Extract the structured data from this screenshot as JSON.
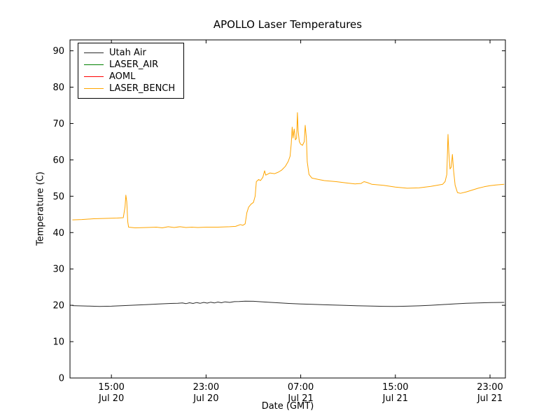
{
  "figure": {
    "background": "#ffffff"
  },
  "chart_data": {
    "type": "line",
    "title": "APOLLO Laser Temperatures",
    "xlabel": "Date (GMT)",
    "ylabel": "Temperature (C)",
    "x_unit": "hours since Jul 20 00:00 GMT",
    "xlim": [
      11.5,
      48.3
    ],
    "ylim": [
      0,
      93
    ],
    "grid": false,
    "legend_position": "upper left",
    "yticks": {
      "values": [
        0,
        10,
        20,
        30,
        40,
        50,
        60,
        70,
        80,
        90
      ],
      "labels": [
        "0",
        "10",
        "20",
        "30",
        "40",
        "50",
        "60",
        "70",
        "80",
        "90"
      ]
    },
    "xticks": {
      "values": [
        15,
        23,
        31,
        39,
        47
      ],
      "labels": [
        [
          "15:00",
          "Jul 20"
        ],
        [
          "23:00",
          "Jul 20"
        ],
        [
          "07:00",
          "Jul 21"
        ],
        [
          "15:00",
          "Jul 21"
        ],
        [
          "23:00",
          "Jul 21"
        ]
      ]
    },
    "series": [
      {
        "name": "Utah Air",
        "color": "#2b2b2b",
        "points": [
          [
            11.7,
            19.9
          ],
          [
            13,
            19.8
          ],
          [
            14,
            19.7
          ],
          [
            15,
            19.75
          ],
          [
            16,
            19.9
          ],
          [
            17,
            20.05
          ],
          [
            18,
            20.2
          ],
          [
            19,
            20.35
          ],
          [
            20,
            20.5
          ],
          [
            20.6,
            20.55
          ],
          [
            21,
            20.65
          ],
          [
            21.3,
            20.45
          ],
          [
            21.6,
            20.7
          ],
          [
            21.9,
            20.5
          ],
          [
            22.2,
            20.75
          ],
          [
            22.5,
            20.55
          ],
          [
            22.8,
            20.8
          ],
          [
            23.1,
            20.6
          ],
          [
            23.4,
            20.85
          ],
          [
            23.7,
            20.65
          ],
          [
            24,
            20.9
          ],
          [
            24.3,
            20.7
          ],
          [
            24.6,
            20.95
          ],
          [
            25,
            20.8
          ],
          [
            25.4,
            21.0
          ],
          [
            25.8,
            21.05
          ],
          [
            26.3,
            21.15
          ],
          [
            27,
            21.1
          ],
          [
            28,
            20.9
          ],
          [
            29,
            20.7
          ],
          [
            30,
            20.5
          ],
          [
            31,
            20.35
          ],
          [
            32,
            20.25
          ],
          [
            33,
            20.15
          ],
          [
            34,
            20.05
          ],
          [
            35,
            19.95
          ],
          [
            36,
            19.85
          ],
          [
            37,
            19.8
          ],
          [
            38,
            19.72
          ],
          [
            39,
            19.7
          ],
          [
            40,
            19.75
          ],
          [
            41,
            19.85
          ],
          [
            42,
            20.0
          ],
          [
            43,
            20.2
          ],
          [
            44,
            20.4
          ],
          [
            45,
            20.55
          ],
          [
            46,
            20.65
          ],
          [
            47,
            20.75
          ],
          [
            48.2,
            20.8
          ]
        ]
      },
      {
        "name": "LASER_AIR",
        "color": "#008000",
        "points": []
      },
      {
        "name": "AOML",
        "color": "#ff0000",
        "points": []
      },
      {
        "name": "LASER_BENCH",
        "color": "#ffa500",
        "points": [
          [
            11.7,
            43.5
          ],
          [
            12.5,
            43.6
          ],
          [
            13.5,
            43.8
          ],
          [
            14.5,
            43.9
          ],
          [
            15.5,
            44.0
          ],
          [
            16.0,
            44.1
          ],
          [
            16.15,
            47.0
          ],
          [
            16.22,
            50.3
          ],
          [
            16.3,
            48.5
          ],
          [
            16.38,
            43.0
          ],
          [
            16.45,
            41.5
          ],
          [
            17,
            41.3
          ],
          [
            18,
            41.4
          ],
          [
            18.8,
            41.5
          ],
          [
            19.3,
            41.3
          ],
          [
            19.8,
            41.6
          ],
          [
            20.3,
            41.4
          ],
          [
            20.8,
            41.6
          ],
          [
            21.3,
            41.4
          ],
          [
            21.8,
            41.5
          ],
          [
            22.3,
            41.4
          ],
          [
            23,
            41.5
          ],
          [
            24,
            41.5
          ],
          [
            25,
            41.6
          ],
          [
            25.5,
            41.7
          ],
          [
            25.9,
            42.2
          ],
          [
            26.1,
            42.0
          ],
          [
            26.3,
            42.4
          ],
          [
            26.45,
            45.5
          ],
          [
            26.6,
            47.0
          ],
          [
            26.8,
            47.8
          ],
          [
            27.0,
            48.3
          ],
          [
            27.15,
            50.0
          ],
          [
            27.25,
            54.0
          ],
          [
            27.45,
            54.6
          ],
          [
            27.6,
            54.3
          ],
          [
            27.8,
            55.2
          ],
          [
            27.95,
            57.0
          ],
          [
            28.05,
            55.8
          ],
          [
            28.4,
            56.4
          ],
          [
            28.8,
            56.2
          ],
          [
            29.1,
            56.6
          ],
          [
            29.4,
            57.2
          ],
          [
            29.7,
            58.2
          ],
          [
            29.95,
            59.6
          ],
          [
            30.1,
            61.0
          ],
          [
            30.2,
            64.5
          ],
          [
            30.28,
            69.0
          ],
          [
            30.35,
            66.0
          ],
          [
            30.45,
            68.5
          ],
          [
            30.55,
            65.5
          ],
          [
            30.65,
            66.0
          ],
          [
            30.72,
            73.0
          ],
          [
            30.78,
            68.0
          ],
          [
            30.88,
            65.0
          ],
          [
            31.0,
            64.3
          ],
          [
            31.15,
            64.0
          ],
          [
            31.3,
            65.0
          ],
          [
            31.38,
            69.5
          ],
          [
            31.48,
            66.0
          ],
          [
            31.55,
            59.5
          ],
          [
            31.7,
            56.0
          ],
          [
            31.95,
            55.0
          ],
          [
            32.5,
            54.6
          ],
          [
            33,
            54.3
          ],
          [
            34,
            54.0
          ],
          [
            35,
            53.6
          ],
          [
            35.6,
            53.4
          ],
          [
            36.1,
            53.5
          ],
          [
            36.35,
            54.0
          ],
          [
            36.6,
            53.8
          ],
          [
            37,
            53.3
          ],
          [
            38,
            53.0
          ],
          [
            39,
            52.5
          ],
          [
            40,
            52.2
          ],
          [
            41,
            52.3
          ],
          [
            42,
            52.7
          ],
          [
            43,
            53.3
          ],
          [
            43.2,
            54.0
          ],
          [
            43.35,
            56.0
          ],
          [
            43.45,
            67.0
          ],
          [
            43.52,
            62.0
          ],
          [
            43.62,
            57.5
          ],
          [
            43.72,
            58.0
          ],
          [
            43.82,
            61.5
          ],
          [
            43.92,
            57.0
          ],
          [
            44.05,
            53.0
          ],
          [
            44.25,
            51.0
          ],
          [
            44.5,
            50.8
          ],
          [
            45,
            51.2
          ],
          [
            45.5,
            51.7
          ],
          [
            46,
            52.2
          ],
          [
            46.5,
            52.6
          ],
          [
            47,
            52.9
          ],
          [
            47.5,
            53.1
          ],
          [
            48.2,
            53.3
          ]
        ]
      }
    ]
  }
}
